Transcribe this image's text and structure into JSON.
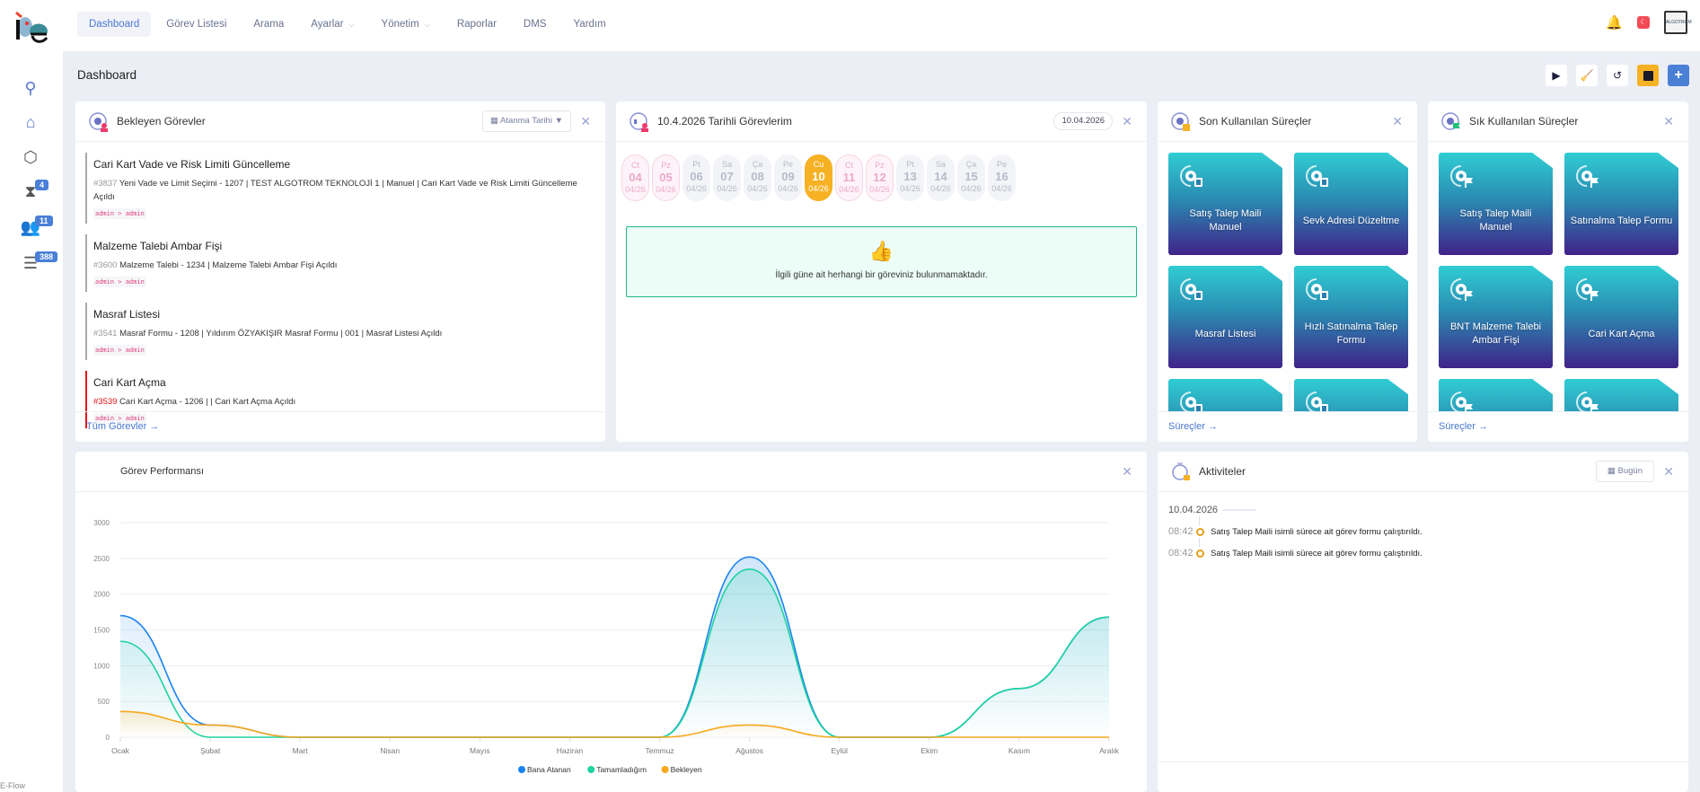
{
  "app": {
    "footer": "E-Flow"
  },
  "nav": {
    "items": [
      {
        "label": "Dashboard",
        "active": true
      },
      {
        "label": "Görev Listesi"
      },
      {
        "label": "Arama"
      },
      {
        "label": "Ayarlar",
        "dropdown": true
      },
      {
        "label": "Yönetim",
        "dropdown": true
      },
      {
        "label": "Raporlar"
      },
      {
        "label": "DMS"
      },
      {
        "label": "Yardım"
      }
    ]
  },
  "sidebar": {
    "items": [
      {
        "icon": "compass-icon"
      },
      {
        "icon": "home-icon"
      },
      {
        "icon": "box-icon"
      },
      {
        "icon": "hourglass-icon",
        "badge": "4"
      },
      {
        "icon": "users-icon",
        "badge": "11"
      },
      {
        "icon": "checklist-icon",
        "badge": "388"
      }
    ]
  },
  "header": {
    "title": "Dashboard",
    "avatar_text": "ALGOTROM"
  },
  "toolbar": [
    "play-icon",
    "broom-icon",
    "undo-icon",
    "save-icon",
    "plus-icon"
  ],
  "pending": {
    "title": "Bekleyen Görevler",
    "sort_label": "Atanma Tarihi ▼",
    "footer": "Tüm Görevler →",
    "tasks": [
      {
        "title": "Cari Kart Vade ve Risk Limiti Güncelleme",
        "id": "#3837",
        "desc": "Yeni Vade ve Limit Seçimi - 1207 | TEST ALGOTROM TEKNOLOJİ 1 | Manuel | Cari Kart Vade ve Risk Limiti Güncelleme Açıldı",
        "who": "admin > admin",
        "overdue": false
      },
      {
        "title": "Malzeme Talebi Ambar Fişi",
        "id": "#3600",
        "desc": "Malzeme Talebi - 1234 | Malzeme Talebi Ambar Fişi Açıldı",
        "who": "admin > admin",
        "overdue": false
      },
      {
        "title": "Masraf Listesi",
        "id": "#3541",
        "desc": "Masraf Formu - 1208 | Yıldırım ÖZYAKIŞIR Masraf Formu | 001 | Masraf Listesi Açıldı",
        "who": "admin > admin",
        "overdue": false
      },
      {
        "title": "Cari Kart Açma",
        "id": "#3539",
        "desc": "Cari Kart Açma - 1206 | | Cari Kart Açma Açıldı",
        "who": "admin > admin",
        "overdue": true
      }
    ]
  },
  "daily": {
    "title": "10.4.2026 Tarihli Görevlerim",
    "date": "10.04.2026",
    "empty_text": "İlgili güne ait herhangi bir göreviniz bulunmamaktadır.",
    "days": [
      {
        "d": "Ct",
        "n": "04",
        "m": "04/26",
        "we": true
      },
      {
        "d": "Pz",
        "n": "05",
        "m": "04/26",
        "we": true
      },
      {
        "d": "Pt",
        "n": "06",
        "m": "04/26"
      },
      {
        "d": "Sa",
        "n": "07",
        "m": "04/26"
      },
      {
        "d": "Ça",
        "n": "08",
        "m": "04/26"
      },
      {
        "d": "Pe",
        "n": "09",
        "m": "04/26"
      },
      {
        "d": "Cu",
        "n": "10",
        "m": "04/26",
        "sel": true
      },
      {
        "d": "Ct",
        "n": "11",
        "m": "04/26",
        "we": true
      },
      {
        "d": "Pz",
        "n": "12",
        "m": "04/26",
        "we": true
      },
      {
        "d": "Pt",
        "n": "13",
        "m": "04/26"
      },
      {
        "d": "Sa",
        "n": "14",
        "m": "04/26"
      },
      {
        "d": "Ça",
        "n": "15",
        "m": "04/26"
      },
      {
        "d": "Pe",
        "n": "16",
        "m": "04/26"
      }
    ]
  },
  "recent": {
    "title": "Son Kullanılan Süreçler",
    "footer": "Süreçler →",
    "tiles": [
      "Satış Talep Maili Manuel",
      "Sevk Adresi Düzeltme",
      "Masraf Listesi",
      "Hızlı Satınalma Talep Formu",
      "",
      ""
    ]
  },
  "frequent": {
    "title": "Sık Kullanılan Süreçler",
    "footer": "Süreçler →",
    "tiles": [
      "Satış Talep Maili Manuel",
      "Satınalma Talep Formu",
      "BNT Malzeme Talebi Ambar Fişi",
      "Cari Kart Açma",
      "",
      ""
    ]
  },
  "activities": {
    "title": "Aktiviteler",
    "filter_label": "Bugün",
    "date": "10.04.2026",
    "items": [
      {
        "time": "08:42",
        "text": "Satış Talep Maili isimli sürece ait görev formu çalıştırıldı."
      },
      {
        "time": "08:42",
        "text": "Satış Talep Maili isimli sürece ait görev formu çalıştırıldı."
      }
    ]
  },
  "chart_data": {
    "type": "area",
    "title": "Görev Performansı",
    "categories": [
      "Ocak",
      "Şubat",
      "Mart",
      "Nisan",
      "Mayıs",
      "Haziran",
      "Temmuz",
      "Ağustos",
      "Eylül",
      "Ekim",
      "Kasım",
      "Aralık"
    ],
    "ylim": [
      0,
      3000
    ],
    "yticks": [
      0,
      500,
      1000,
      1500,
      2000,
      2500,
      3000
    ],
    "grid": true,
    "legend": "bottom",
    "series": [
      {
        "name": "Bana Atanan",
        "color": "#1b84f0",
        "values": [
          1700,
          170,
          0,
          0,
          0,
          0,
          0,
          2520,
          0,
          0,
          680,
          1680
        ]
      },
      {
        "name": "Tamamladığım",
        "color": "#1ed3a0",
        "values": [
          1340,
          0,
          0,
          0,
          0,
          0,
          0,
          2350,
          0,
          0,
          680,
          1680
        ]
      },
      {
        "name": "Bekleyen",
        "color": "#f7a81b",
        "values": [
          360,
          170,
          0,
          0,
          0,
          0,
          0,
          170,
          0,
          0,
          0,
          0
        ]
      }
    ]
  }
}
